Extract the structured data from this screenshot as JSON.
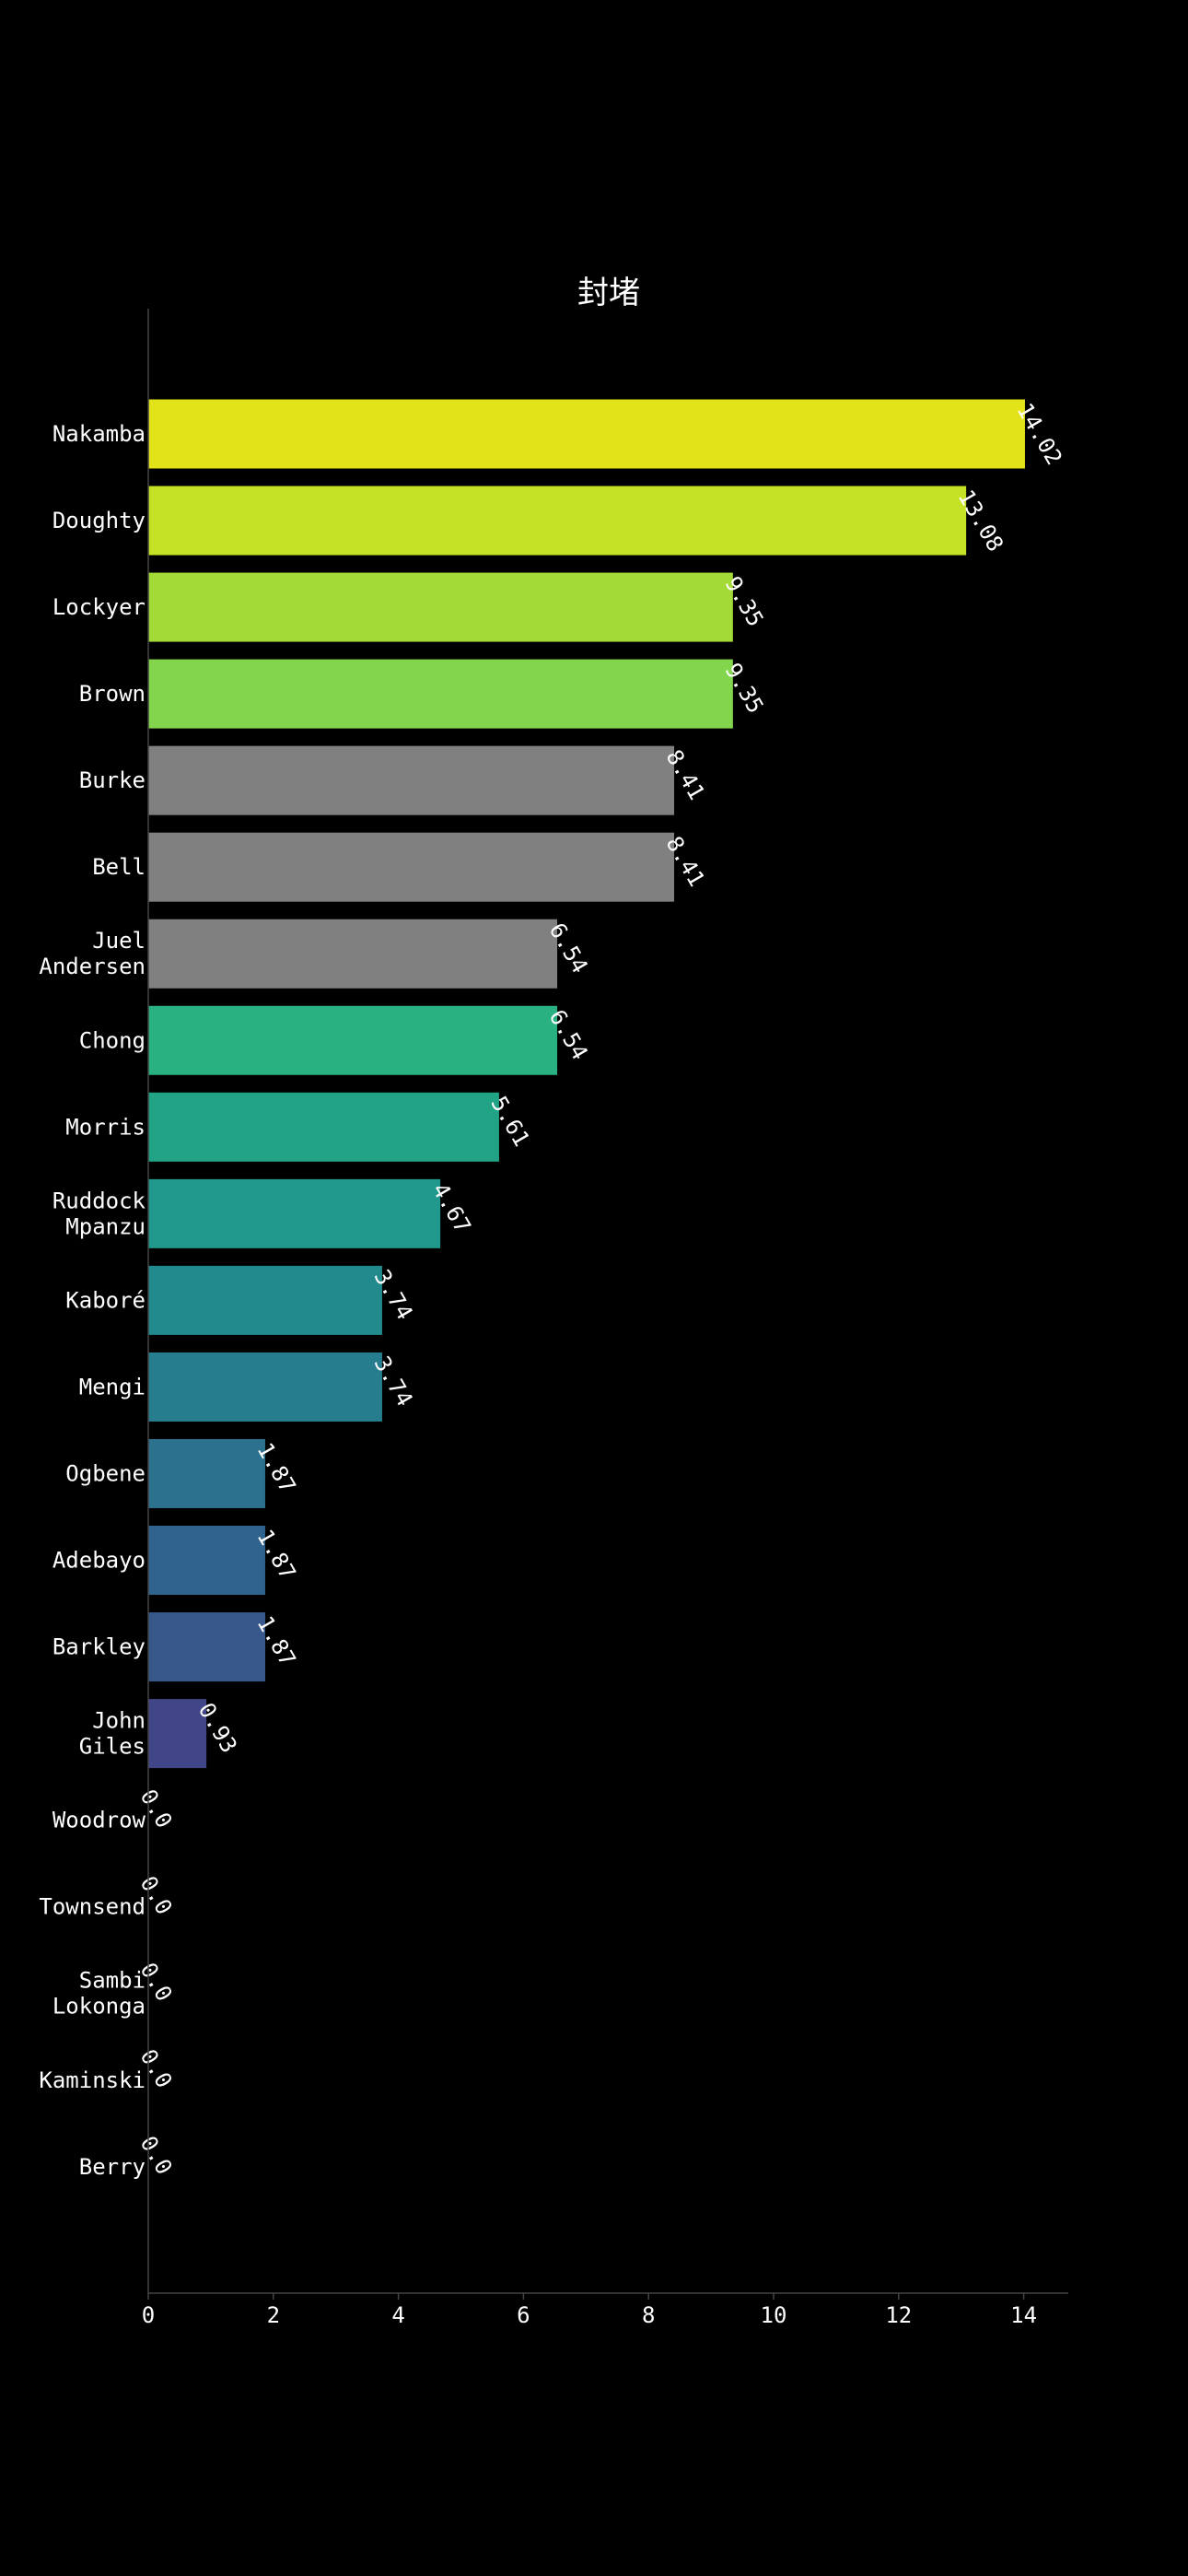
{
  "chart_data": {
    "type": "bar",
    "orientation": "horizontal",
    "title": "封堵",
    "xlabel": "",
    "ylabel": "",
    "xlim": [
      0,
      14.7
    ],
    "xticks": [
      0,
      2,
      4,
      6,
      8,
      10,
      12,
      14
    ],
    "grid": false,
    "legend": "none",
    "background": "#000000",
    "categories": [
      [
        "Nakamba"
      ],
      [
        "Doughty"
      ],
      [
        "Lockyer"
      ],
      [
        "Brown"
      ],
      [
        "Burke"
      ],
      [
        "Bell"
      ],
      [
        "Juel",
        "Andersen"
      ],
      [
        "Chong"
      ],
      [
        "Morris"
      ],
      [
        "Ruddock",
        "Mpanzu"
      ],
      [
        "Kaboré"
      ],
      [
        "Mengi"
      ],
      [
        "Ogbene"
      ],
      [
        "Adebayo"
      ],
      [
        "Barkley"
      ],
      [
        "John",
        "Giles"
      ],
      [
        "Woodrow"
      ],
      [
        "Townsend"
      ],
      [
        "Sambi",
        "Lokonga"
      ],
      [
        "Kaminski"
      ],
      [
        "Berry"
      ]
    ],
    "values": [
      14.02,
      13.08,
      9.35,
      9.35,
      8.41,
      8.41,
      6.54,
      6.54,
      5.61,
      4.67,
      3.74,
      3.74,
      1.87,
      1.87,
      1.87,
      0.93,
      0.0,
      0.0,
      0.0,
      0.0,
      0.0
    ],
    "value_labels": [
      "14.02",
      "13.08",
      "9.35",
      "9.35",
      "8.41",
      "8.41",
      "6.54",
      "6.54",
      "5.61",
      "4.67",
      "3.74",
      "3.74",
      "1.87",
      "1.87",
      "1.87",
      "0.93",
      "0.0",
      "0.0",
      "0.0",
      "0.0",
      "0.0"
    ],
    "colors": [
      "#e2e419",
      "#c5e226",
      "#a3da37",
      "#84d54e",
      "#808080",
      "#808080",
      "#808080",
      "#29b181",
      "#21a386",
      "#20988b",
      "#228a8d",
      "#267d8e",
      "#2c718e",
      "#30648e",
      "#38588c",
      "#404688",
      "#433d84",
      "#46327e",
      "#472676",
      "#48186a",
      "#440154"
    ]
  }
}
